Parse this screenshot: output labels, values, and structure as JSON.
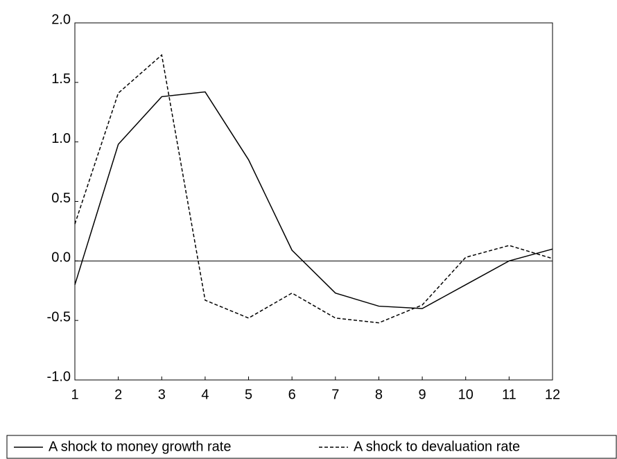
{
  "chart_data": {
    "type": "line",
    "x": [
      1,
      2,
      3,
      4,
      5,
      6,
      7,
      8,
      9,
      10,
      11,
      12
    ],
    "xlim": [
      1,
      12
    ],
    "xticks": [
      1,
      2,
      3,
      4,
      5,
      6,
      7,
      8,
      9,
      10,
      11,
      12
    ],
    "ylim": [
      -1,
      2
    ],
    "yticks": [
      {
        "value": -1,
        "label": "-1.0"
      },
      {
        "value": -0.5,
        "label": "-0.5"
      },
      {
        "value": 0,
        "label": "0.0"
      },
      {
        "value": 0.5,
        "label": "0.5"
      },
      {
        "value": 1,
        "label": "1.0"
      },
      {
        "value": 1.5,
        "label": "1.5"
      },
      {
        "value": 2,
        "label": "2.0"
      }
    ],
    "zero_line": true,
    "legend": "bottom",
    "series": [
      {
        "name": "A shock to money growth rate",
        "color": "#000000",
        "dash": "solid",
        "values": [
          -0.2,
          0.98,
          1.38,
          1.42,
          0.85,
          0.09,
          -0.27,
          -0.38,
          -0.4,
          -0.2,
          0.0,
          0.1
        ]
      },
      {
        "name": "A shock to devaluation rate",
        "color": "#000000",
        "dash": "dashed",
        "values": [
          0.31,
          1.41,
          1.73,
          -0.33,
          -0.48,
          -0.27,
          -0.48,
          -0.52,
          -0.37,
          0.03,
          0.13,
          0.02
        ]
      }
    ]
  }
}
